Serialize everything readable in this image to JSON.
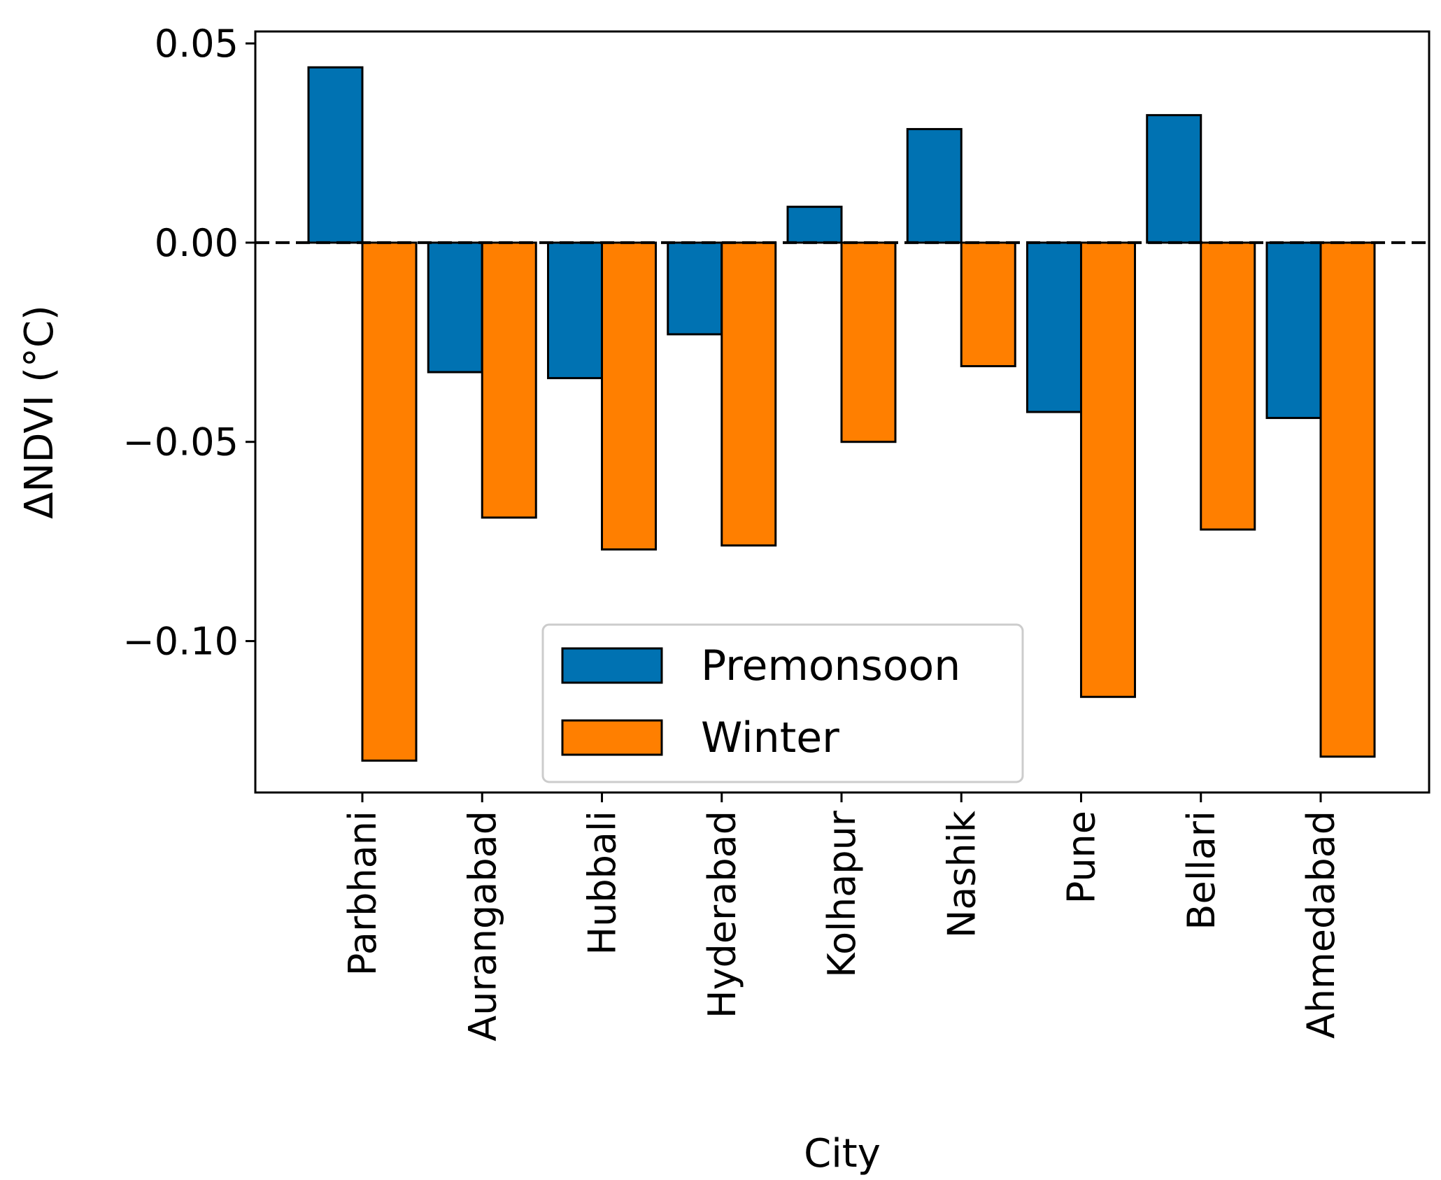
{
  "chart_data": {
    "type": "bar",
    "title": "",
    "xlabel": "City",
    "ylabel": "ΔNDVI (°C)",
    "categories": [
      "Parbhani",
      "Aurangabad",
      "Hubbali",
      "Hyderabad",
      "Kolhapur",
      "Nashik",
      "Pune",
      "Bellari",
      "Ahmedabad"
    ],
    "series": [
      {
        "name": "Premonsoon",
        "color": "#0072B2",
        "values": [
          0.044,
          -0.0325,
          -0.034,
          -0.023,
          0.009,
          0.0285,
          -0.0425,
          0.032,
          -0.044
        ]
      },
      {
        "name": "Winter",
        "color": "#FF7F00",
        "values": [
          -0.13,
          -0.069,
          -0.077,
          -0.076,
          -0.05,
          -0.031,
          -0.114,
          -0.072,
          -0.129
        ]
      }
    ],
    "ylim": [
      -0.138,
      0.053
    ],
    "yticks": [
      0.05,
      0.0,
      -0.05,
      -0.1
    ],
    "ytick_labels": [
      "0.05",
      "0.00",
      "−0.05",
      "−0.10"
    ],
    "reference_line": {
      "y": 0,
      "style": "dashed",
      "color": "#000000"
    },
    "grid": false,
    "legend_position": "lower center"
  }
}
